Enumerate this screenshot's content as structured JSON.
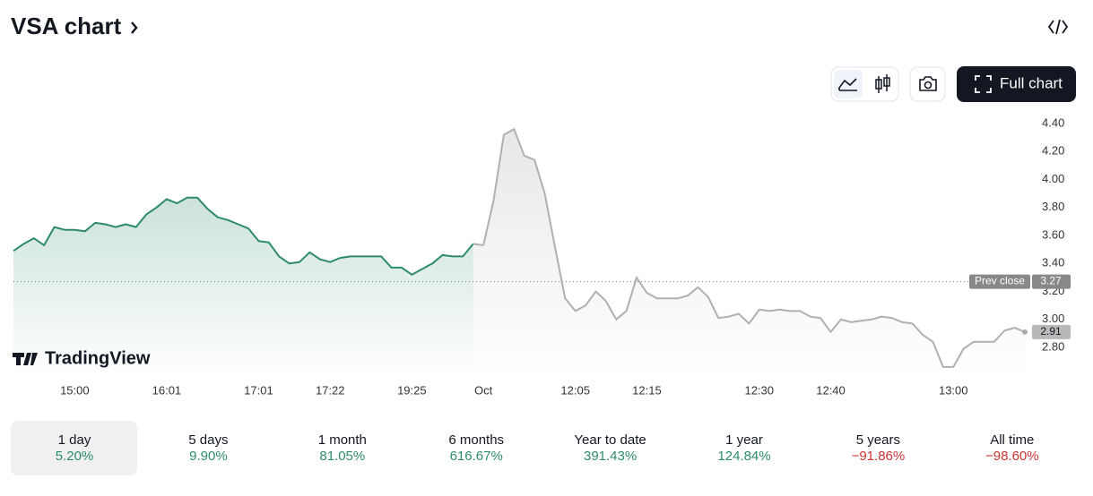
{
  "header": {
    "title": "VSA chart"
  },
  "toolbar": {
    "full_chart": "Full chart"
  },
  "brand": "TradingView",
  "chart_data": {
    "type": "line",
    "categories": [
      null,
      null,
      null,
      null,
      null,
      null,
      "15:00",
      null,
      null,
      null,
      null,
      null,
      null,
      null,
      null,
      "16:01",
      null,
      null,
      null,
      null,
      null,
      null,
      null,
      null,
      "17:01",
      null,
      null,
      null,
      null,
      null,
      null,
      "17:22",
      null,
      null,
      null,
      null,
      null,
      null,
      null,
      "19:25",
      null,
      null,
      null,
      null,
      null,
      null,
      "Oct",
      null,
      null,
      null,
      null,
      null,
      null,
      null,
      null,
      "12:05",
      null,
      null,
      null,
      null,
      null,
      null,
      "12:15",
      null,
      null,
      null,
      null,
      null,
      null,
      null,
      null,
      null,
      null,
      "12:30",
      null,
      null,
      null,
      null,
      null,
      null,
      "12:40",
      null,
      null,
      null,
      null,
      null,
      null,
      null,
      null,
      null,
      null,
      null,
      "13:00",
      null,
      null,
      null,
      null,
      null,
      null,
      null
    ],
    "series": [
      {
        "color": "#2e8b6a",
        "values": [
          3.49,
          3.54,
          3.58,
          3.53,
          3.66,
          3.64,
          3.64,
          3.63,
          3.69,
          3.68,
          3.66,
          3.68,
          3.66,
          3.75,
          3.8,
          3.86,
          3.83,
          3.87,
          3.87,
          3.79,
          3.73,
          3.71,
          3.68,
          3.65,
          3.56,
          3.55,
          3.45,
          3.4,
          3.41,
          3.48,
          3.43,
          3.41,
          3.44,
          3.45,
          3.45,
          3.45,
          3.45,
          3.37,
          3.37,
          3.32,
          3.36,
          3.4,
          3.46,
          3.45,
          3.45,
          3.54,
          null,
          null,
          null,
          null,
          null,
          null,
          null,
          null,
          null,
          null,
          null,
          null,
          null,
          null,
          null,
          null,
          null,
          null,
          null,
          null,
          null,
          null,
          null,
          null,
          null,
          null,
          null,
          null,
          null,
          null,
          null,
          null,
          null,
          null,
          null,
          null,
          null,
          null,
          null,
          null,
          null,
          null,
          null,
          null,
          null,
          null,
          null,
          null,
          null,
          null,
          null,
          null,
          null,
          null
        ]
      },
      {
        "color": "#b0b0b0",
        "values": [
          null,
          null,
          null,
          null,
          null,
          null,
          null,
          null,
          null,
          null,
          null,
          null,
          null,
          null,
          null,
          null,
          null,
          null,
          null,
          null,
          null,
          null,
          null,
          null,
          null,
          null,
          null,
          null,
          null,
          null,
          null,
          null,
          null,
          null,
          null,
          null,
          null,
          null,
          null,
          null,
          null,
          null,
          null,
          null,
          null,
          null,
          3.53,
          3.85,
          4.32,
          4.36,
          4.17,
          4.14,
          3.9,
          3.52,
          3.15,
          3.06,
          3.1,
          3.2,
          3.13,
          3.0,
          3.06,
          3.3,
          3.19,
          3.15,
          3.15,
          3.15,
          3.17,
          3.23,
          3.16,
          3.01,
          3.02,
          3.04,
          2.97,
          3.07,
          3.06,
          3.07,
          3.06,
          3.06,
          3.02,
          3.01,
          2.91,
          3.0,
          2.98,
          2.99,
          3.0,
          3.02,
          3.01,
          2.98,
          2.97,
          2.89,
          2.84,
          2.66,
          2.66,
          2.79,
          2.84,
          2.84,
          2.84,
          2.92,
          2.94,
          2.91
        ]
      }
    ],
    "prev_close": {
      "label": "Prev close",
      "value": 3.27
    },
    "ylim": [
      2.6,
      4.52
    ],
    "yticks": [
      {
        "value": 2.8,
        "label": "2.80"
      },
      {
        "value": 3.0,
        "label": "3.00"
      },
      {
        "value": 3.2,
        "label": "3.20"
      },
      {
        "value": 3.4,
        "label": "3.40"
      },
      {
        "value": 3.6,
        "label": "3.60"
      },
      {
        "value": 3.8,
        "label": "3.80"
      },
      {
        "value": 4.0,
        "label": "4.00"
      },
      {
        "value": 4.2,
        "label": "4.20"
      },
      {
        "value": 4.4,
        "label": "4.40"
      }
    ],
    "grid": false
  },
  "periods": [
    {
      "label": "1 day",
      "change": "5.20%",
      "color": "#2e8b6a",
      "selected": true
    },
    {
      "label": "5 days",
      "change": "9.90%",
      "color": "#2e8b6a"
    },
    {
      "label": "1 month",
      "change": "81.05%",
      "color": "#2e8b6a"
    },
    {
      "label": "6 months",
      "change": "616.67%",
      "color": "#2e8b6a"
    },
    {
      "label": "Year to date",
      "change": "391.43%",
      "color": "#2e8b6a"
    },
    {
      "label": "1 year",
      "change": "124.84%",
      "color": "#2e8b6a"
    },
    {
      "label": "5 years",
      "change": "−91.86%",
      "color": "#cc3333"
    },
    {
      "label": "All time",
      "change": "−98.60%",
      "color": "#cc3333"
    }
  ]
}
